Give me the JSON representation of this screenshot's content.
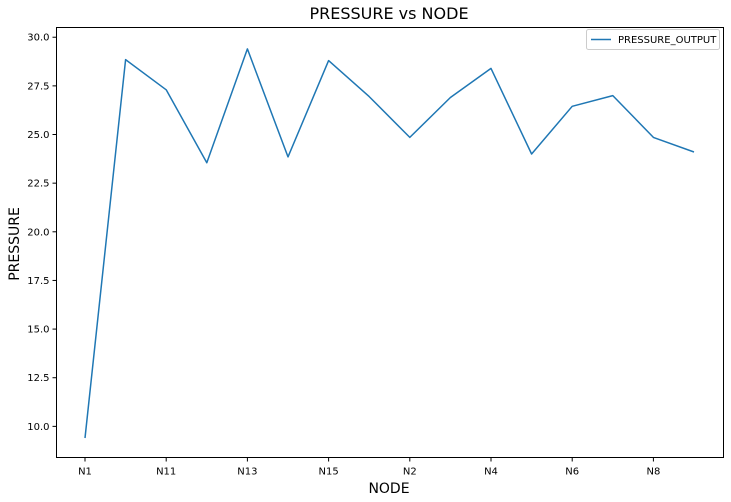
{
  "chart_data": {
    "type": "line",
    "title": "PRESSURE vs NODE",
    "xlabel": "NODE",
    "ylabel": "PRESSURE",
    "categories": [
      "N1",
      "",
      "N11",
      "",
      "N13",
      "",
      "N15",
      "",
      "N2",
      "",
      "N4",
      "",
      "N6",
      "",
      "N8",
      ""
    ],
    "x_tick_labels": [
      "N1",
      "N11",
      "N13",
      "N15",
      "N2",
      "N4",
      "N6",
      "N8"
    ],
    "y_ticks": [
      10.0,
      12.5,
      15.0,
      17.5,
      20.0,
      22.5,
      25.0,
      27.5,
      30.0
    ],
    "y_tick_labels": [
      "10.0",
      "12.5",
      "15.0",
      "17.5",
      "20.0",
      "22.5",
      "25.0",
      "27.5",
      "30.0"
    ],
    "ylim": [
      8.4,
      30.5
    ],
    "grid": false,
    "legend_position": "top-right",
    "series": [
      {
        "name": "PRESSURE_OUTPUT",
        "color": "#1f77b4",
        "values": [
          9.4,
          28.85,
          27.3,
          23.55,
          29.4,
          23.85,
          28.8,
          26.95,
          24.85,
          26.9,
          28.4,
          24.0,
          26.45,
          27.0,
          24.85,
          24.1
        ]
      }
    ]
  }
}
